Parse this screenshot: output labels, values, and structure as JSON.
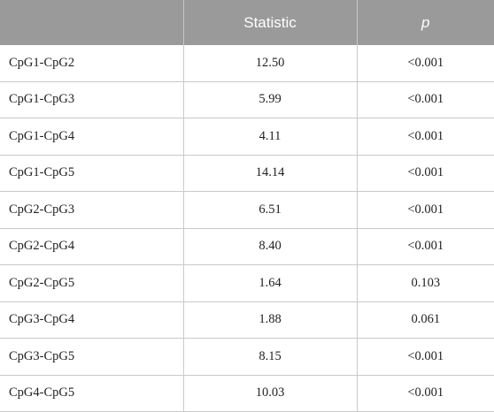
{
  "table": {
    "headers": [
      "",
      "Statistic",
      "p"
    ],
    "rows": [
      {
        "pair": "CpG1-CpG2",
        "statistic": "12.50",
        "p": "<0.001"
      },
      {
        "pair": "CpG1-CpG3",
        "statistic": "5.99",
        "p": "<0.001"
      },
      {
        "pair": "CpG1-CpG4",
        "statistic": "4.11",
        "p": "<0.001"
      },
      {
        "pair": "CpG1-CpG5",
        "statistic": "14.14",
        "p": "<0.001"
      },
      {
        "pair": "CpG2-CpG3",
        "statistic": "6.51",
        "p": "<0.001"
      },
      {
        "pair": "CpG2-CpG4",
        "statistic": "8.40",
        "p": "<0.001"
      },
      {
        "pair": "CpG2-CpG5",
        "statistic": "1.64",
        "p": "0.103"
      },
      {
        "pair": "CpG3-CpG4",
        "statistic": "1.88",
        "p": "0.061"
      },
      {
        "pair": "CpG3-CpG5",
        "statistic": "8.15",
        "p": "<0.001"
      },
      {
        "pair": "CpG4-CpG5",
        "statistic": "10.03",
        "p": "<0.001"
      }
    ]
  },
  "colors": {
    "header_background": "#9a9a9a",
    "header_text": "#ffffff",
    "grid_lines": "#c9c9c9"
  }
}
